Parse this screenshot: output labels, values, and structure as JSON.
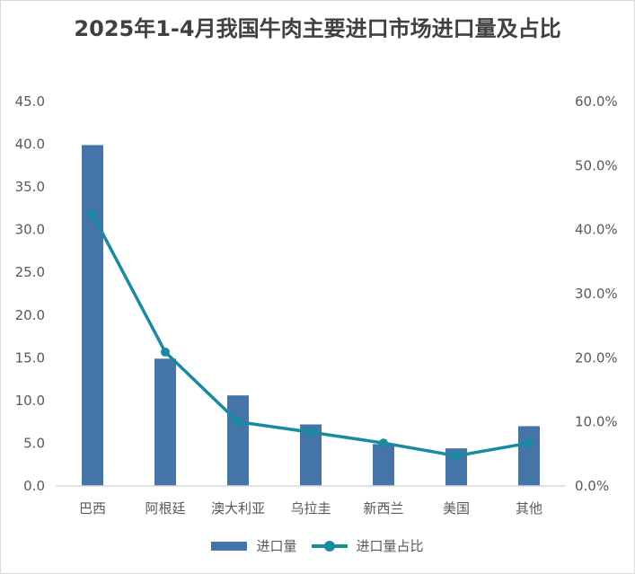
{
  "chart_data": {
    "type": "bar+line",
    "title": "2025年1-4月我国牛肉主要进口市场进口量及占比",
    "categories": [
      "巴西",
      "阿根廷",
      "澳大利亚",
      "乌拉圭",
      "新西兰",
      "美国",
      "其他"
    ],
    "series": [
      {
        "name": "进口量",
        "type": "bar",
        "axis": "left",
        "color": "#4574a8",
        "values": [
          39.9,
          14.9,
          10.6,
          7.2,
          4.9,
          4.4,
          7.0
        ]
      },
      {
        "name": "进口量占比",
        "type": "line",
        "axis": "right",
        "color": "#1a8aa0",
        "values": [
          42.4,
          20.9,
          10.0,
          8.4,
          6.7,
          4.7,
          6.7
        ]
      }
    ],
    "ylim": [
      0,
      45
    ],
    "y_ticks": [
      "0.0",
      "5.0",
      "10.0",
      "15.0",
      "20.0",
      "25.0",
      "30.0",
      "35.0",
      "40.0",
      "45.0"
    ],
    "y2lim": [
      0,
      60
    ],
    "y2_ticks": [
      "0.0%",
      "10.0%",
      "20.0%",
      "30.0%",
      "40.0%",
      "50.0%",
      "60.0%"
    ],
    "grid": false,
    "legend": "bottom"
  }
}
